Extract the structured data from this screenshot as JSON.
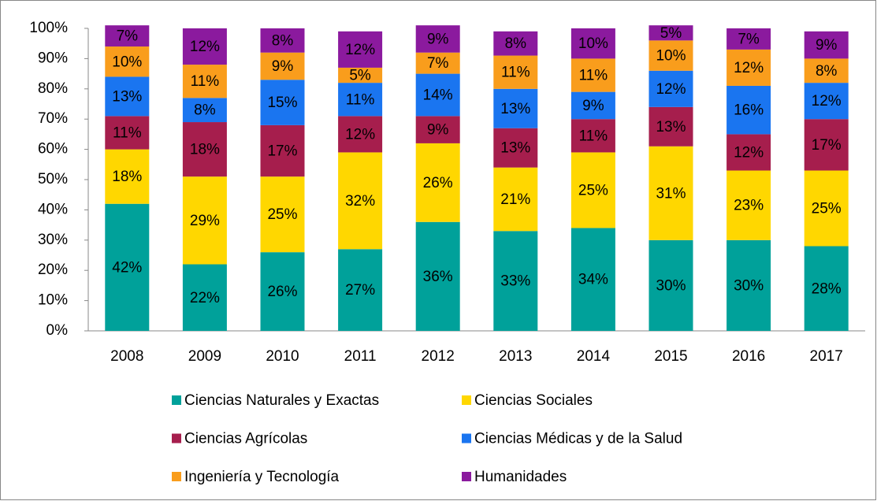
{
  "chart_data": {
    "type": "stacked_bar",
    "categories": [
      "2008",
      "2009",
      "2010",
      "2011",
      "2012",
      "2013",
      "2014",
      "2015",
      "2016",
      "2017"
    ],
    "series": [
      {
        "name": "Ciencias Naturales y Exactas",
        "color": "#00a19a",
        "values": [
          42,
          22,
          26,
          27,
          36,
          33,
          34,
          30,
          30,
          28
        ],
        "value_labels": [
          "42%",
          "22%",
          "26%",
          "27%",
          "36%",
          "33%",
          "34%",
          "30%",
          "30%",
          "28%"
        ]
      },
      {
        "name": "Ciencias Sociales",
        "color": "#ffd700",
        "values": [
          18,
          29,
          25,
          32,
          26,
          21,
          25,
          31,
          23,
          25
        ],
        "value_labels": [
          "18%",
          "29%",
          "25%",
          "32%",
          "26%",
          "21%",
          "25%",
          "31%",
          "23%",
          "25%"
        ]
      },
      {
        "name": "Ciencias Agrícolas",
        "color": "#a61e4d",
        "values": [
          11,
          18,
          17,
          12,
          9,
          13,
          11,
          13,
          12,
          17
        ],
        "value_labels": [
          "11%",
          "18%",
          "17%",
          "12%",
          "9%",
          "13%",
          "11%",
          "13%",
          "12%",
          "17%"
        ]
      },
      {
        "name": "Ciencias Médicas y de la Salud",
        "color": "#1a75f0",
        "values": [
          13,
          8,
          15,
          11,
          14,
          13,
          9,
          12,
          16,
          12
        ],
        "value_labels": [
          "13%",
          "8%",
          "15%",
          "11%",
          "14%",
          "13%",
          "9%",
          "12%",
          "16%",
          "12%"
        ]
      },
      {
        "name": "Ingeniería y Tecnología",
        "color": "#f99d1c",
        "values": [
          10,
          11,
          9,
          5,
          7,
          11,
          11,
          10,
          12,
          8
        ],
        "value_labels": [
          "10%",
          "11%",
          "9%",
          "5%",
          "7%",
          "11%",
          "11%",
          "10%",
          "12%",
          "8%"
        ]
      },
      {
        "name": "Humanidades",
        "color": "#8b1a9e",
        "values": [
          7,
          12,
          8,
          12,
          9,
          8,
          10,
          5,
          7,
          9
        ],
        "value_labels": [
          "7%",
          "12%",
          "8%",
          "12%",
          "9%",
          "8%",
          "10%",
          "5%",
          "7%",
          "9%"
        ]
      }
    ],
    "ylim": [
      0,
      100
    ],
    "yticks": [
      {
        "value": 0,
        "label": "0%"
      },
      {
        "value": 10,
        "label": "10%"
      },
      {
        "value": 20,
        "label": "20%"
      },
      {
        "value": 30,
        "label": "30%"
      },
      {
        "value": 40,
        "label": "40%"
      },
      {
        "value": 50,
        "label": "50%"
      },
      {
        "value": 60,
        "label": "60%"
      },
      {
        "value": 70,
        "label": "70%"
      },
      {
        "value": 80,
        "label": "80%"
      },
      {
        "value": 90,
        "label": "90%"
      },
      {
        "value": 100,
        "label": "100%"
      }
    ]
  }
}
